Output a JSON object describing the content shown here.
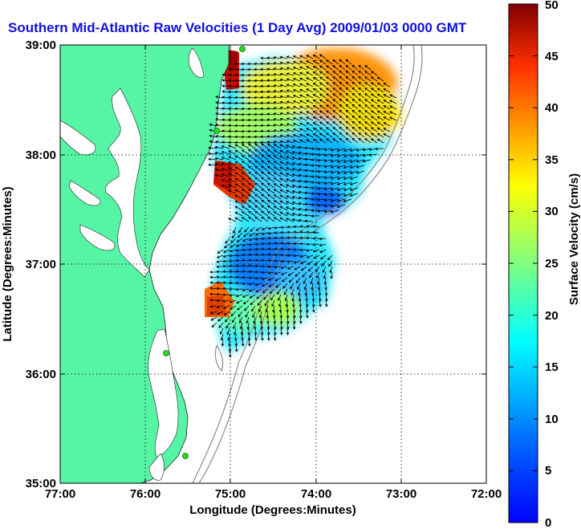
{
  "title": "Southern Mid-Atlantic Raw Velocities (1 Day Avg) 2009/01/03 0000 GMT",
  "map": {
    "x_axis": {
      "label": "Longitude (Degrees:Minutes)",
      "ticks": [
        "77:00",
        "76:00",
        "75:00",
        "74:00",
        "73:00",
        "72:00"
      ],
      "range": [
        -77,
        -72
      ]
    },
    "y_axis": {
      "label": "Latitude (Degrees:Minutes)",
      "ticks": [
        "35:00",
        "36:00",
        "37:00",
        "38:00",
        "39:00"
      ],
      "range": [
        35,
        39
      ]
    },
    "grid": "dotted",
    "land_color": "#55f5a5",
    "water_color": "#ffffff",
    "bathymetry_color": "#8c8c8c",
    "arrow_color": "#000000",
    "station_color": "#22dd22"
  },
  "colorbar": {
    "label": "Surface Velocity (cm/s)",
    "ticks": [
      "0",
      "5",
      "10",
      "15",
      "20",
      "25",
      "30",
      "35",
      "40",
      "45",
      "50"
    ],
    "range": [
      0,
      50
    ],
    "colormap": "jet"
  }
}
